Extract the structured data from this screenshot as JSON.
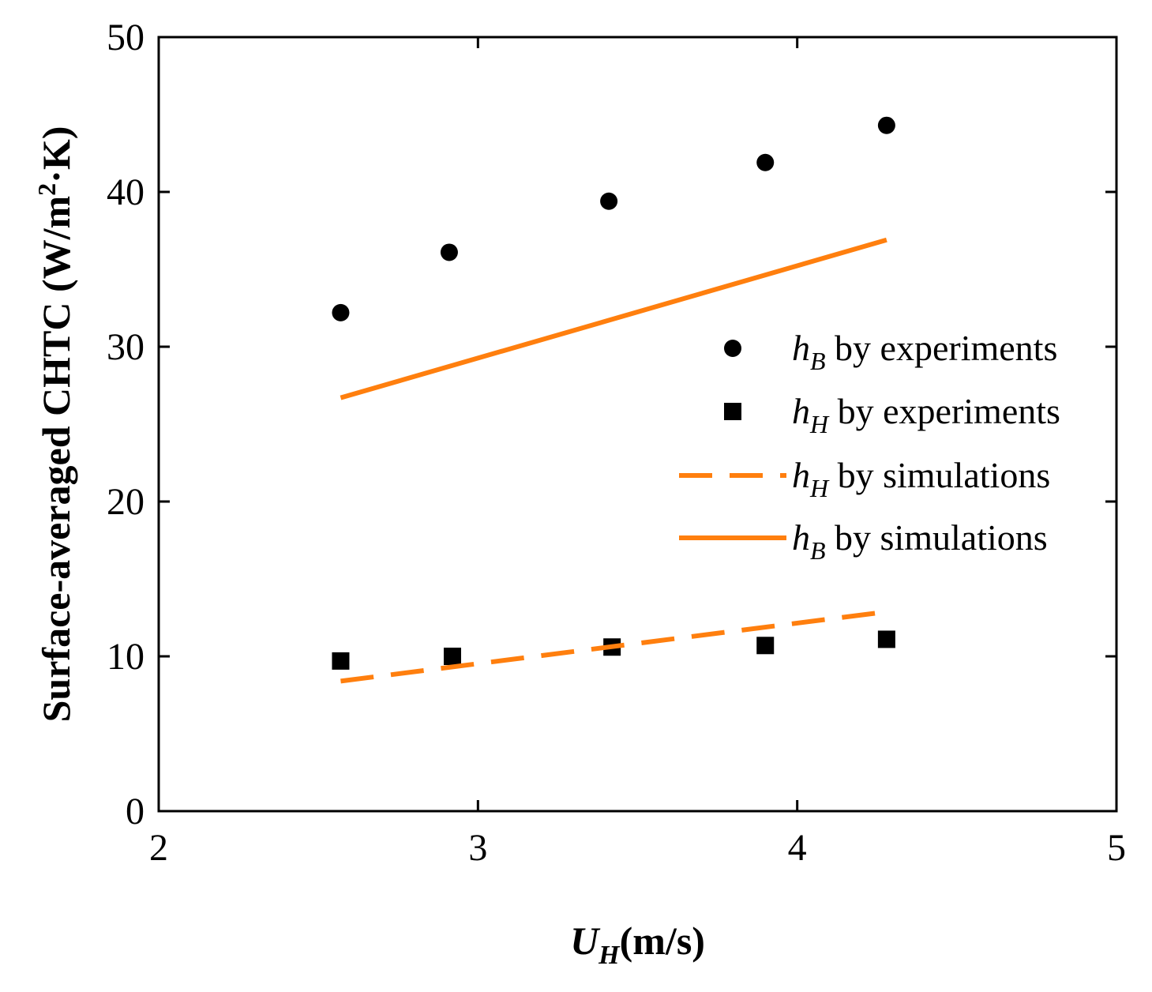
{
  "chart_data": {
    "type": "scatter",
    "title": "",
    "xlabel": {
      "symbol": "U",
      "subscript": "H",
      "unit": "(m/s)"
    },
    "ylabel": {
      "prefix": "Surface-averaged CHTC (W/m",
      "superscript": "2",
      "suffix": "·K)"
    },
    "xlim": [
      2,
      5
    ],
    "ylim": [
      0,
      50
    ],
    "x_ticks": [
      2,
      3,
      4,
      5
    ],
    "y_ticks": [
      0,
      10,
      20,
      30,
      40,
      50
    ],
    "grid": false,
    "legend_position": "right",
    "series": [
      {
        "name": "hB by experiments",
        "symbol": "h",
        "subscript": "B",
        "label_rest": " by experiments",
        "style": "circle",
        "color": "#000000",
        "x": [
          2.57,
          2.91,
          3.41,
          3.9,
          4.28
        ],
        "y": [
          32.2,
          36.1,
          39.4,
          41.9,
          44.3
        ]
      },
      {
        "name": "hH by experiments",
        "symbol": "h",
        "subscript": "H",
        "label_rest": " by experiments",
        "style": "square",
        "color": "#000000",
        "x": [
          2.57,
          2.92,
          3.42,
          3.9,
          4.28
        ],
        "y": [
          9.7,
          10.0,
          10.6,
          10.7,
          11.1
        ]
      },
      {
        "name": "hH by simulations",
        "symbol": "h",
        "subscript": "H",
        "label_rest": " by simulations",
        "style": "dashed",
        "color": "#FF7F0E",
        "x": [
          2.57,
          4.25
        ],
        "y": [
          8.4,
          12.8
        ]
      },
      {
        "name": "hB by simulations",
        "symbol": "h",
        "subscript": "B",
        "label_rest": " by simulations",
        "style": "solid",
        "color": "#FF7F0E",
        "x": [
          2.57,
          4.28
        ],
        "y": [
          26.7,
          36.9
        ]
      }
    ]
  }
}
